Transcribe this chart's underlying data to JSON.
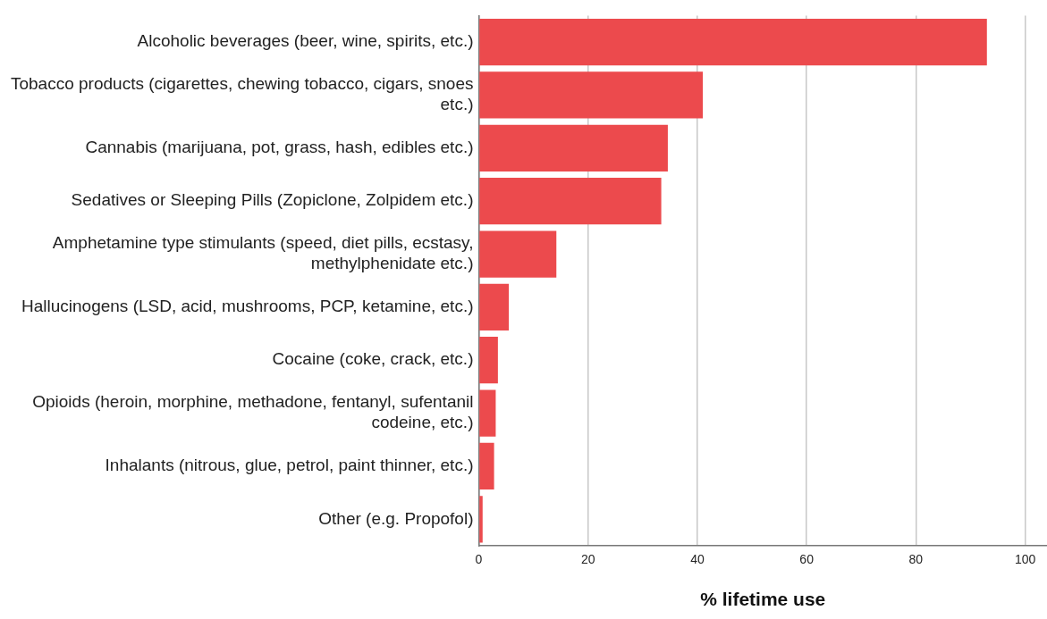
{
  "chart_data": {
    "type": "bar",
    "orientation": "horizontal",
    "xlabel": "% lifetime use",
    "categories": [
      "Alcoholic beverages (beer, wine, spirits, etc.)",
      "Tobacco products (cigarettes, chewing tobacco, cigars, snoes etc.)",
      "Cannabis (marijuana, pot, grass, hash, edibles etc.)",
      "Sedatives or Sleeping Pills (Zopiclone, Zolpidem etc.)",
      "Amphetamine type stimulants (speed, diet pills, ecstasy, methylphenidate etc.)",
      "Hallucinogens (LSD, acid, mushrooms, PCP, ketamine, etc.)",
      "Cocaine (coke, crack, etc.)",
      "Opioids (heroin, morphine, methadone, fentanyl, sufentanil codeine, etc.)",
      "Inhalants (nitrous, glue, petrol, paint thinner, etc.)",
      "Other (e.g. Propofol)"
    ],
    "values": [
      93,
      41,
      34.6,
      33.4,
      14.2,
      5.5,
      3.5,
      3.1,
      2.8,
      0.7
    ],
    "color": "#ec4a4d",
    "xlim": [
      0,
      104
    ],
    "xticks": [
      0,
      20,
      40,
      60,
      80,
      100
    ],
    "grid": "x",
    "legend": false
  }
}
